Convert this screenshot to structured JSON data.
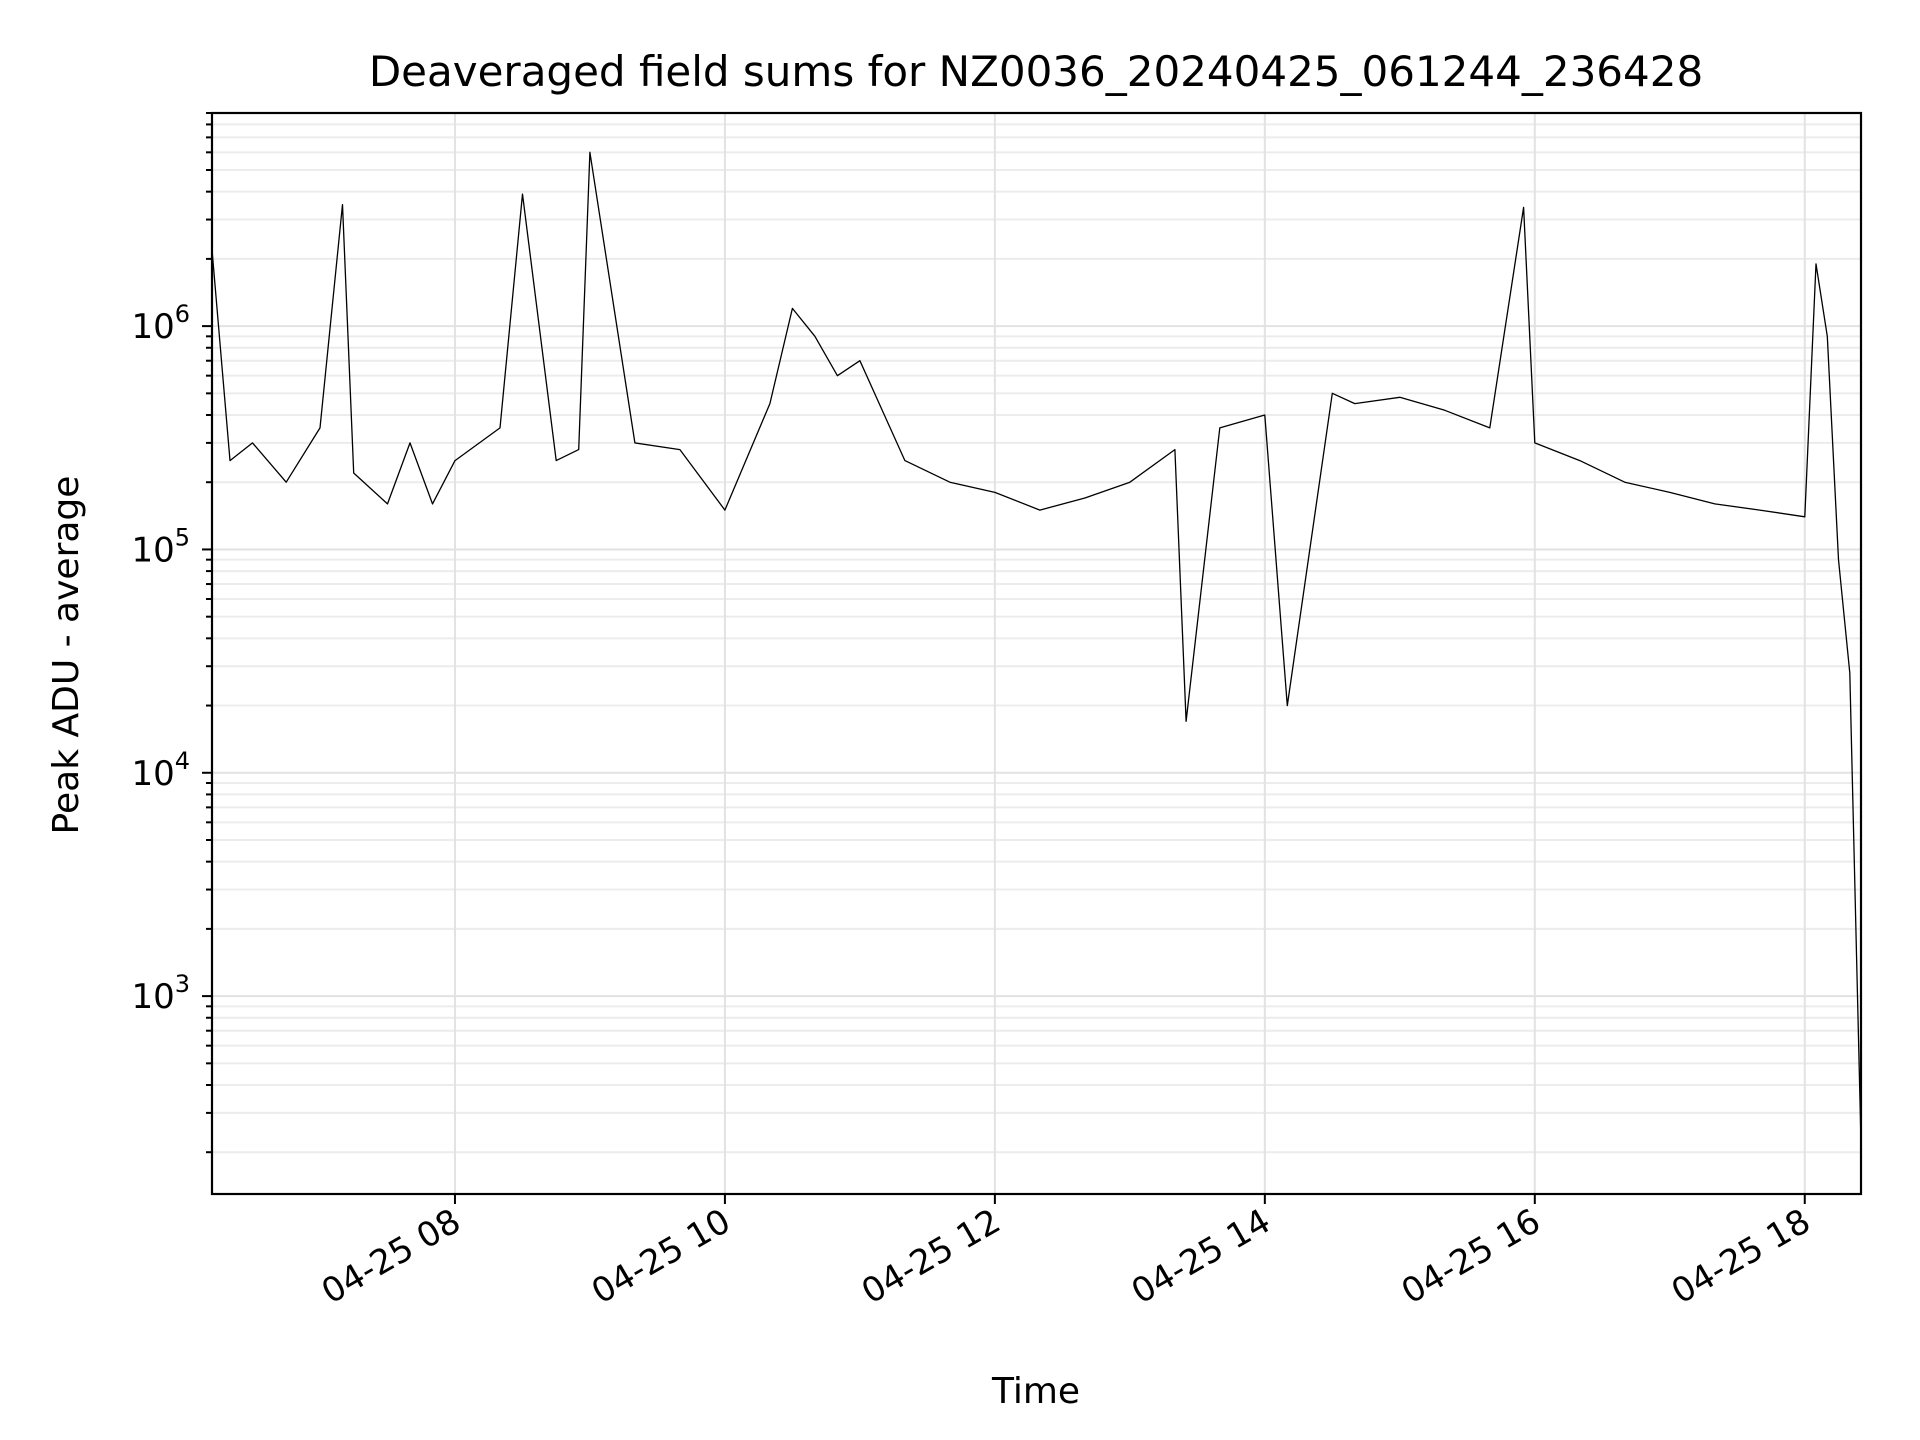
{
  "chart_data": {
    "type": "line",
    "title": "Deaveraged field sums for NZ0036_20240425_061244_236428",
    "xlabel": "Time",
    "ylabel": "Peak ADU - average",
    "y_scale": "log",
    "ylim": [
      130,
      9000000
    ],
    "xlim": [
      "2024-04-25 06:12",
      "2024-04-25 18:25"
    ],
    "grid": true,
    "legend": "none",
    "line_color": "#000000",
    "x_ticks": [
      {
        "value": "2024-04-25 08:00",
        "label": "04-25 08"
      },
      {
        "value": "2024-04-25 10:00",
        "label": "04-25 10"
      },
      {
        "value": "2024-04-25 12:00",
        "label": "04-25 12"
      },
      {
        "value": "2024-04-25 14:00",
        "label": "04-25 14"
      },
      {
        "value": "2024-04-25 16:00",
        "label": "04-25 16"
      },
      {
        "value": "2024-04-25 18:00",
        "label": "04-25 18"
      }
    ],
    "y_ticks": [
      {
        "value": 1000,
        "base": "10",
        "exp": "3"
      },
      {
        "value": 10000,
        "base": "10",
        "exp": "4"
      },
      {
        "value": 100000,
        "base": "10",
        "exp": "5"
      },
      {
        "value": 1000000,
        "base": "10",
        "exp": "6"
      }
    ],
    "series": [
      {
        "x": [
          "2024-04-25 06:12",
          "2024-04-25 06:20",
          "2024-04-25 06:30",
          "2024-04-25 06:45",
          "2024-04-25 07:00",
          "2024-04-25 07:10",
          "2024-04-25 07:15",
          "2024-04-25 07:30",
          "2024-04-25 07:40",
          "2024-04-25 07:50",
          "2024-04-25 08:00",
          "2024-04-25 08:20",
          "2024-04-25 08:30",
          "2024-04-25 08:45",
          "2024-04-25 08:55",
          "2024-04-25 09:00",
          "2024-04-25 09:20",
          "2024-04-25 09:40",
          "2024-04-25 10:00",
          "2024-04-25 10:20",
          "2024-04-25 10:30",
          "2024-04-25 10:40",
          "2024-04-25 10:50",
          "2024-04-25 11:00",
          "2024-04-25 11:20",
          "2024-04-25 11:40",
          "2024-04-25 12:00",
          "2024-04-25 12:20",
          "2024-04-25 12:40",
          "2024-04-25 13:00",
          "2024-04-25 13:20",
          "2024-04-25 13:25",
          "2024-04-25 13:40",
          "2024-04-25 14:00",
          "2024-04-25 14:10",
          "2024-04-25 14:30",
          "2024-04-25 14:40",
          "2024-04-25 15:00",
          "2024-04-25 15:20",
          "2024-04-25 15:40",
          "2024-04-25 15:55",
          "2024-04-25 16:00",
          "2024-04-25 16:20",
          "2024-04-25 16:40",
          "2024-04-25 17:00",
          "2024-04-25 17:20",
          "2024-04-25 17:40",
          "2024-04-25 18:00",
          "2024-04-25 18:05",
          "2024-04-25 18:10",
          "2024-04-25 18:15",
          "2024-04-25 18:20",
          "2024-04-25 18:25"
        ],
        "y": [
          2200000,
          250000,
          300000,
          200000,
          350000,
          3500000,
          220000,
          160000,
          300000,
          160000,
          250000,
          350000,
          3900000,
          250000,
          280000,
          6000000,
          300000,
          280000,
          150000,
          450000,
          1200000,
          900000,
          600000,
          700000,
          250000,
          200000,
          180000,
          150000,
          170000,
          200000,
          280000,
          17000,
          350000,
          400000,
          20000,
          500000,
          450000,
          480000,
          420000,
          350000,
          3400000,
          300000,
          250000,
          200000,
          180000,
          160000,
          150000,
          140000,
          1900000,
          900000,
          90000,
          28000,
          220
        ]
      }
    ]
  }
}
